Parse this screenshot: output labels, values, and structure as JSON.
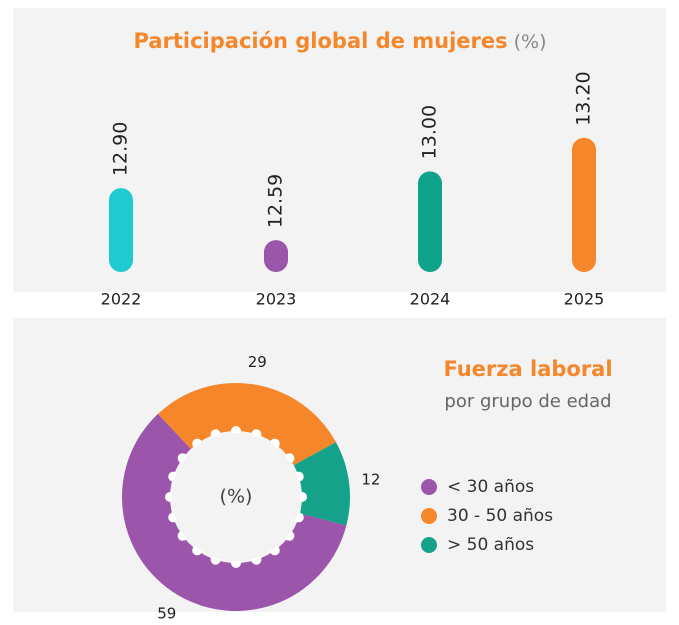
{
  "chart_data": [
    {
      "type": "bar",
      "title": "Participación global de mujeres",
      "title_unit": "(%)",
      "categories": [
        "2022",
        "2023",
        "2024",
        "2025"
      ],
      "values": [
        12.9,
        12.59,
        13.0,
        13.2
      ],
      "value_labels": [
        "12.90",
        "12.59",
        "13.00",
        "13.20"
      ],
      "colors": [
        "#1ecbd1",
        "#9b55ab",
        "#0fa38c",
        "#f5862a"
      ],
      "ylim": [
        12.4,
        13.3
      ]
    },
    {
      "type": "donut",
      "title": "Fuerza laboral",
      "subtitle": "por grupo de edad",
      "center_label": "(%)",
      "categories": [
        "< 30 años",
        "30 - 50 años",
        "> 50 años"
      ],
      "values": [
        59,
        29,
        12
      ],
      "colors": [
        "#9b55ab",
        "#f5862a",
        "#14a28a"
      ],
      "legend": "right"
    }
  ]
}
